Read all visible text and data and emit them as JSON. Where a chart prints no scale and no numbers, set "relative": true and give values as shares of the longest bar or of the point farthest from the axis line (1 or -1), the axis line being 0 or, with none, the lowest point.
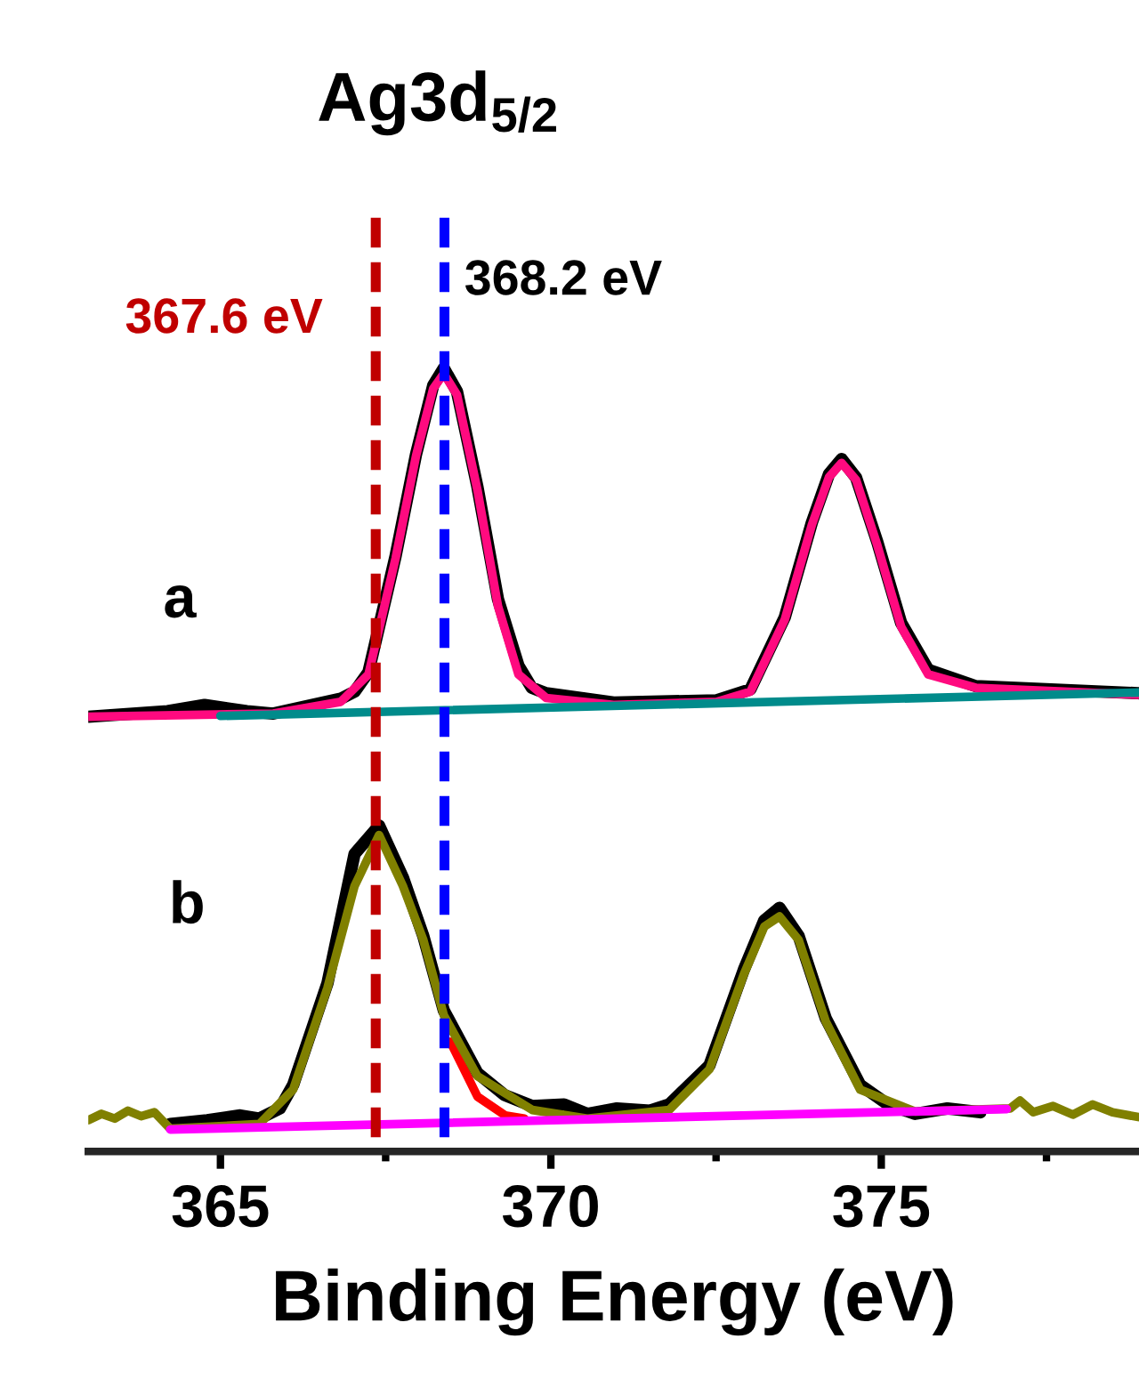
{
  "chart_data": {
    "type": "line",
    "title": "Ag3d$_{5/2}$",
    "xlabel": "Binding Energy (eV)",
    "relative": true,
    "xlim": [
      363,
      378.9
    ],
    "xticks": [
      365,
      {
        "value": 367.5,
        "label": null
      },
      370,
      {
        "value": 372.5,
        "label": null
      },
      375,
      {
        "value": 377.5,
        "label": null
      }
    ],
    "series": [
      {
        "color": "#000000",
        "x": [
          363.0,
          364.2,
          364.76,
          365.4,
          365.8,
          366.82,
          367.03,
          367.24,
          367.65,
          367.96,
          368.22,
          368.38,
          368.58,
          368.89,
          369.2,
          369.51,
          369.71,
          369.93,
          370.95,
          372.51,
          373.02,
          373.54,
          373.95,
          374.21,
          374.4,
          374.62,
          374.94,
          375.3,
          375.71,
          376.43,
          378.89
        ],
        "values": [
          0.555,
          0.562,
          0.57,
          0.562,
          0.559,
          0.578,
          0.587,
          0.612,
          0.76,
          0.89,
          0.978,
          1.0,
          0.97,
          0.848,
          0.705,
          0.62,
          0.592,
          0.585,
          0.573,
          0.576,
          0.59,
          0.682,
          0.803,
          0.865,
          0.884,
          0.86,
          0.778,
          0.675,
          0.615,
          0.594,
          0.585
        ]
      },
      {
        "color": "#ff0a7f",
        "x": [
          363.0,
          365.8,
          366.82,
          367.24,
          367.65,
          367.96,
          368.22,
          368.38,
          368.58,
          368.89,
          369.2,
          369.51,
          369.93,
          370.95,
          372.51,
          373.02,
          373.54,
          373.95,
          374.21,
          374.4,
          374.62,
          374.94,
          375.3,
          375.71,
          376.43,
          378.89
        ],
        "values": [
          0.555,
          0.559,
          0.574,
          0.609,
          0.757,
          0.888,
          0.974,
          0.993,
          0.966,
          0.844,
          0.696,
          0.609,
          0.579,
          0.57,
          0.574,
          0.587,
          0.679,
          0.8,
          0.861,
          0.879,
          0.857,
          0.774,
          0.67,
          0.609,
          0.592,
          0.583
        ]
      },
      {
        "color": "#008b8b",
        "x": [
          365.0,
          378.89
        ],
        "values": [
          0.556,
          0.586
        ]
      },
      {
        "color": "#000000",
        "x": [
          364.24,
          364.8,
          365.3,
          365.59,
          365.9,
          366.1,
          366.62,
          367.03,
          367.4,
          367.76,
          368.07,
          368.38,
          368.89,
          369.3,
          369.72,
          370.2,
          370.55,
          371.0,
          371.5,
          371.79,
          372.4,
          372.92,
          373.23,
          373.46,
          373.75,
          374.16,
          374.68,
          375.1,
          375.51,
          376.0,
          376.5
        ],
        "values": [
          0.035,
          0.04,
          0.046,
          0.042,
          0.055,
          0.085,
          0.215,
          0.38,
          0.416,
          0.35,
          0.275,
          0.18,
          0.1,
          0.072,
          0.058,
          0.06,
          0.048,
          0.055,
          0.052,
          0.06,
          0.11,
          0.232,
          0.295,
          0.311,
          0.275,
          0.17,
          0.085,
          0.06,
          0.048,
          0.055,
          0.05
        ]
      },
      {
        "color": "#ff0000",
        "x": [
          368.48,
          368.89,
          369.31,
          369.6
        ],
        "values": [
          0.14,
          0.07,
          0.046,
          0.042
        ]
      },
      {
        "color": "#808000",
        "x": [
          363.0,
          363.2,
          363.4,
          363.6,
          363.8,
          364.0,
          364.24,
          365.59,
          366.1,
          366.62,
          367.03,
          367.4,
          367.76,
          368.07,
          368.38,
          368.89,
          369.72,
          370.55,
          371.79,
          372.4,
          372.92,
          373.23,
          373.46,
          373.75,
          374.16,
          374.68,
          375.51,
          376.95,
          377.1,
          377.3,
          377.6,
          377.9,
          378.2,
          378.5,
          378.89
        ],
        "values": [
          0.04,
          0.048,
          0.042,
          0.052,
          0.045,
          0.05,
          0.029,
          0.035,
          0.079,
          0.209,
          0.339,
          0.404,
          0.339,
          0.27,
          0.174,
          0.096,
          0.053,
          0.042,
          0.053,
          0.105,
          0.226,
          0.287,
          0.3,
          0.27,
          0.166,
          0.079,
          0.051,
          0.055,
          0.065,
          0.05,
          0.058,
          0.047,
          0.06,
          0.05,
          0.044
        ]
      },
      {
        "color": "#ff00ff",
        "x": [
          364.24,
          376.9
        ],
        "values": [
          0.028,
          0.054
        ]
      }
    ],
    "ref_lines": [
      {
        "axis": "x",
        "value": 367.35,
        "label": "367.6 eV",
        "color": "#c00000",
        "line_style": "dashed"
      },
      {
        "axis": "x",
        "value": 368.39,
        "label": "368.2 eV",
        "color": "#0000ff",
        "line_style": "dashed"
      }
    ],
    "annotations": [
      "a",
      "b"
    ]
  }
}
